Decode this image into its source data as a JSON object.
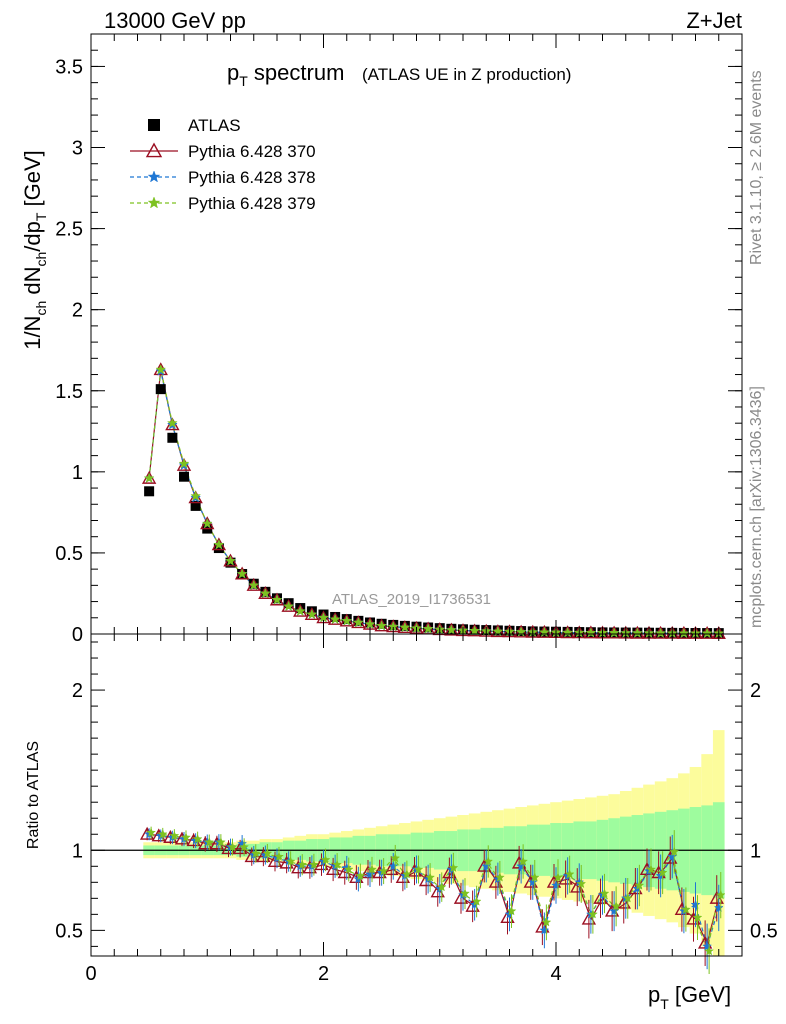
{
  "header": {
    "energy_label": "13000 GeV pp",
    "process_label": "Z+Jet"
  },
  "side_labels": {
    "rivet": "Rivet 3.1.10, ≥ 2.6M events",
    "mcplots": "mcplots.cern.ch [arXiv:1306.3436]"
  },
  "plot_title": {
    "main": "p",
    "main_sub": "T",
    "main_rest": " spectrum",
    "note": "(ATLAS UE in Z production)"
  },
  "analysis_id": "ATLAS_2019_I1736531",
  "axes": {
    "ylabel_top": "1/N",
    "ylabel_top_full": "1/Nch dNch/dpT [GeV]",
    "ylabel_ratio": "Ratio to ATLAS",
    "xlabel": "p",
    "xlabel_sub": "T",
    "xlabel_unit": " [GeV]"
  },
  "legend": [
    {
      "label": "ATLAS",
      "marker": "square",
      "color": "#000000"
    },
    {
      "label": "Pythia 6.428 370",
      "marker": "triangle",
      "color": "#9b0f22"
    },
    {
      "label": "Pythia 6.428 378",
      "marker": "star",
      "color": "#1f77d4"
    },
    {
      "label": "Pythia 6.428 379",
      "marker": "star",
      "color": "#7dc220"
    }
  ],
  "colors": {
    "data": "#000000",
    "p370": "#9b0f22",
    "p378": "#1f77d4",
    "p379": "#7dc220",
    "band_inner": "#9efc9e",
    "band_outer": "#fcfc9c"
  },
  "chart_data": [
    {
      "type": "scatter",
      "panel": "main",
      "xlim": [
        0,
        5.6
      ],
      "ylim": [
        0,
        3.7
      ],
      "x_ticks": [
        0,
        2,
        4
      ],
      "y_ticks": [
        0,
        0.5,
        1,
        1.5,
        2,
        2.5,
        3,
        3.5
      ],
      "x": [
        0.5,
        0.6,
        0.7,
        0.8,
        0.9,
        1.0,
        1.1,
        1.2,
        1.3,
        1.4,
        1.5,
        1.6,
        1.7,
        1.8,
        1.9,
        2.0,
        2.1,
        2.2,
        2.3,
        2.4,
        2.5,
        2.6,
        2.7,
        2.8,
        2.9,
        3.0,
        3.1,
        3.2,
        3.3,
        3.4,
        3.5,
        3.6,
        3.7,
        3.8,
        3.9,
        4.0,
        4.1,
        4.2,
        4.3,
        4.4,
        4.5,
        4.6,
        4.7,
        4.8,
        4.9,
        5.0,
        5.1,
        5.2,
        5.3,
        5.4
      ],
      "series": [
        {
          "name": "ATLAS",
          "values": [
            0.88,
            1.51,
            1.21,
            0.97,
            0.79,
            0.65,
            0.53,
            0.44,
            0.37,
            0.31,
            0.26,
            0.22,
            0.19,
            0.16,
            0.14,
            0.12,
            0.105,
            0.092,
            0.081,
            0.071,
            0.063,
            0.056,
            0.05,
            0.045,
            0.04,
            0.036,
            0.032,
            0.029,
            0.026,
            0.024,
            0.022,
            0.02,
            0.018,
            0.016,
            0.015,
            0.014,
            0.013,
            0.012,
            0.011,
            0.01,
            0.0095,
            0.009,
            0.0085,
            0.008,
            0.0075,
            0.007,
            0.0065,
            0.006,
            0.0057,
            0.0054
          ]
        },
        {
          "name": "Pythia 6.428 370",
          "values": [
            0.96,
            1.63,
            1.29,
            1.04,
            0.84,
            0.68,
            0.55,
            0.45,
            0.37,
            0.3,
            0.25,
            0.21,
            0.17,
            0.14,
            0.12,
            0.1,
            0.09,
            0.08,
            0.07,
            0.06,
            0.05,
            0.045,
            0.04,
            0.035,
            0.031,
            0.027,
            0.024,
            0.021,
            0.019,
            0.017,
            0.015,
            0.014,
            0.012,
            0.011,
            0.01,
            0.009,
            0.008,
            0.0075,
            0.007,
            0.0065,
            0.006,
            0.0055,
            0.005,
            0.0048,
            0.0045,
            0.0043,
            0.004,
            0.0038,
            0.0036,
            0.0034
          ]
        },
        {
          "name": "Pythia 6.428 378",
          "values": [
            0.96,
            1.62,
            1.29,
            1.04,
            0.84,
            0.68,
            0.55,
            0.45,
            0.37,
            0.3,
            0.25,
            0.21,
            0.17,
            0.14,
            0.12,
            0.1,
            0.09,
            0.08,
            0.07,
            0.06,
            0.05,
            0.045,
            0.04,
            0.035,
            0.031,
            0.027,
            0.024,
            0.021,
            0.019,
            0.017,
            0.015,
            0.014,
            0.012,
            0.011,
            0.01,
            0.009,
            0.008,
            0.0075,
            0.007,
            0.0065,
            0.006,
            0.0055,
            0.005,
            0.0048,
            0.0045,
            0.0043,
            0.004,
            0.0038,
            0.0036,
            0.0034
          ]
        },
        {
          "name": "Pythia 6.428 379",
          "values": [
            0.96,
            1.63,
            1.3,
            1.05,
            0.85,
            0.68,
            0.55,
            0.45,
            0.37,
            0.3,
            0.25,
            0.21,
            0.17,
            0.14,
            0.12,
            0.1,
            0.09,
            0.08,
            0.07,
            0.06,
            0.05,
            0.045,
            0.04,
            0.035,
            0.031,
            0.027,
            0.024,
            0.021,
            0.019,
            0.017,
            0.015,
            0.014,
            0.012,
            0.011,
            0.01,
            0.009,
            0.008,
            0.0075,
            0.007,
            0.0065,
            0.006,
            0.0055,
            0.005,
            0.0048,
            0.0045,
            0.0043,
            0.004,
            0.0038,
            0.0036,
            0.0034
          ]
        }
      ]
    },
    {
      "type": "line",
      "panel": "ratio",
      "xlim": [
        0,
        5.6
      ],
      "ylim": [
        0.34,
        2.35
      ],
      "x_ticks": [
        0,
        2,
        4
      ],
      "y_ticks": [
        0.5,
        1,
        2
      ],
      "reference": 1,
      "x": [
        0.5,
        0.6,
        0.7,
        0.8,
        0.9,
        1.0,
        1.1,
        1.2,
        1.3,
        1.4,
        1.5,
        1.6,
        1.7,
        1.8,
        1.9,
        2.0,
        2.1,
        2.2,
        2.3,
        2.4,
        2.5,
        2.6,
        2.7,
        2.8,
        2.9,
        3.0,
        3.1,
        3.2,
        3.3,
        3.4,
        3.5,
        3.6,
        3.7,
        3.8,
        3.9,
        4.0,
        4.1,
        4.2,
        4.3,
        4.4,
        4.5,
        4.6,
        4.7,
        4.8,
        4.9,
        5.0,
        5.1,
        5.2,
        5.3,
        5.4
      ],
      "band_inner": [
        0.03,
        0.03,
        0.03,
        0.03,
        0.03,
        0.03,
        0.03,
        0.03,
        0.04,
        0.04,
        0.05,
        0.05,
        0.06,
        0.06,
        0.07,
        0.07,
        0.08,
        0.08,
        0.09,
        0.09,
        0.1,
        0.1,
        0.1,
        0.11,
        0.11,
        0.12,
        0.12,
        0.13,
        0.13,
        0.14,
        0.14,
        0.15,
        0.15,
        0.16,
        0.16,
        0.17,
        0.17,
        0.18,
        0.18,
        0.19,
        0.2,
        0.21,
        0.22,
        0.23,
        0.24,
        0.25,
        0.26,
        0.27,
        0.28,
        0.3
      ],
      "band_outer": [
        0.05,
        0.05,
        0.05,
        0.05,
        0.05,
        0.05,
        0.05,
        0.05,
        0.06,
        0.06,
        0.07,
        0.07,
        0.08,
        0.09,
        0.1,
        0.1,
        0.11,
        0.12,
        0.13,
        0.14,
        0.15,
        0.16,
        0.17,
        0.18,
        0.19,
        0.2,
        0.21,
        0.22,
        0.23,
        0.24,
        0.25,
        0.26,
        0.27,
        0.28,
        0.29,
        0.3,
        0.31,
        0.32,
        0.33,
        0.34,
        0.35,
        0.37,
        0.39,
        0.41,
        0.43,
        0.45,
        0.48,
        0.52,
        0.6,
        0.75
      ],
      "series": [
        {
          "name": "Pythia 6.428 370",
          "values": [
            1.1,
            1.09,
            1.08,
            1.07,
            1.06,
            1.04,
            1.04,
            1.01,
            1.01,
            0.96,
            0.96,
            0.93,
            0.92,
            0.89,
            0.89,
            0.91,
            0.88,
            0.86,
            0.83,
            0.86,
            0.86,
            0.88,
            0.83,
            0.87,
            0.81,
            0.74,
            0.86,
            0.7,
            0.65,
            0.9,
            0.8,
            0.58,
            0.92,
            0.8,
            0.52,
            0.8,
            0.82,
            0.77,
            0.57,
            0.7,
            0.62,
            0.67,
            0.76,
            0.88,
            0.86,
            0.95,
            0.63,
            0.57,
            0.42,
            0.7
          ]
        },
        {
          "name": "Pythia 6.428 378",
          "values": [
            1.1,
            1.09,
            1.08,
            1.07,
            1.06,
            1.05,
            1.05,
            1.02,
            1.04,
            0.97,
            0.97,
            0.95,
            0.93,
            0.9,
            0.9,
            0.93,
            0.9,
            0.89,
            0.82,
            0.85,
            0.86,
            0.9,
            0.84,
            0.88,
            0.82,
            0.76,
            0.88,
            0.72,
            0.66,
            0.9,
            0.82,
            0.6,
            0.9,
            0.8,
            0.5,
            0.78,
            0.84,
            0.8,
            0.6,
            0.72,
            0.62,
            0.7,
            0.76,
            0.87,
            0.84,
            0.96,
            0.62,
            0.66,
            0.4,
            0.64
          ]
        },
        {
          "name": "Pythia 6.428 379",
          "values": [
            1.11,
            1.1,
            1.09,
            1.08,
            1.07,
            1.05,
            1.05,
            1.02,
            1.02,
            0.98,
            0.98,
            0.96,
            0.93,
            0.91,
            0.91,
            0.94,
            0.91,
            0.88,
            0.84,
            0.88,
            0.87,
            0.95,
            0.85,
            0.88,
            0.83,
            0.77,
            0.89,
            0.73,
            0.68,
            0.93,
            0.83,
            0.62,
            0.93,
            0.83,
            0.55,
            0.83,
            0.85,
            0.79,
            0.6,
            0.73,
            0.65,
            0.7,
            0.78,
            0.88,
            0.86,
            0.99,
            0.63,
            0.58,
            0.37,
            0.72
          ]
        }
      ]
    }
  ]
}
